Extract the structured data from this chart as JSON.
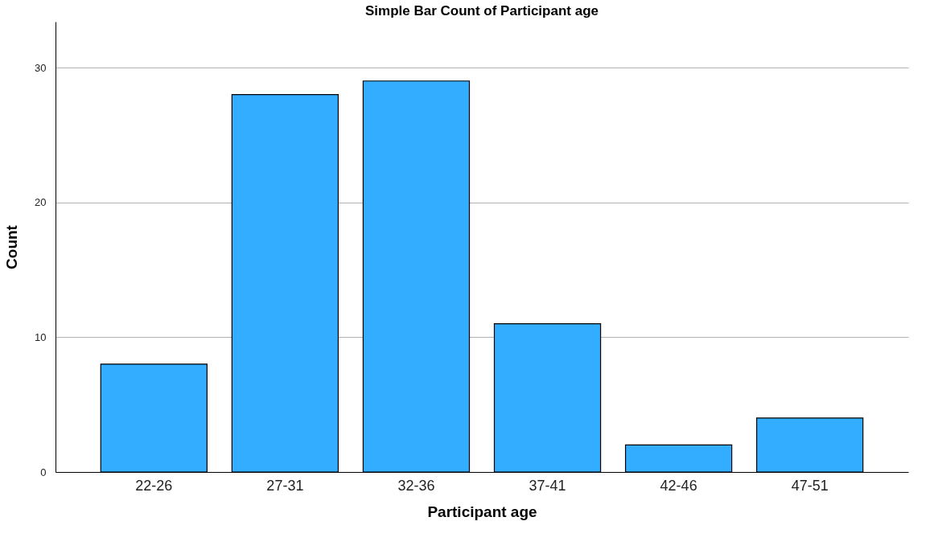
{
  "chart_data": {
    "type": "bar",
    "title": "Simple Bar Count of Participant age",
    "xlabel": "Participant age",
    "ylabel": "Count",
    "categories": [
      "22-26",
      "27-31",
      "32-36",
      "37-41",
      "42-46",
      "47-51"
    ],
    "values": [
      8,
      28,
      29,
      11,
      2,
      4
    ],
    "color": "#33adff",
    "ylim": [
      0,
      33.4
    ],
    "yticks": [
      0,
      10,
      20,
      30
    ],
    "grid": "y"
  }
}
